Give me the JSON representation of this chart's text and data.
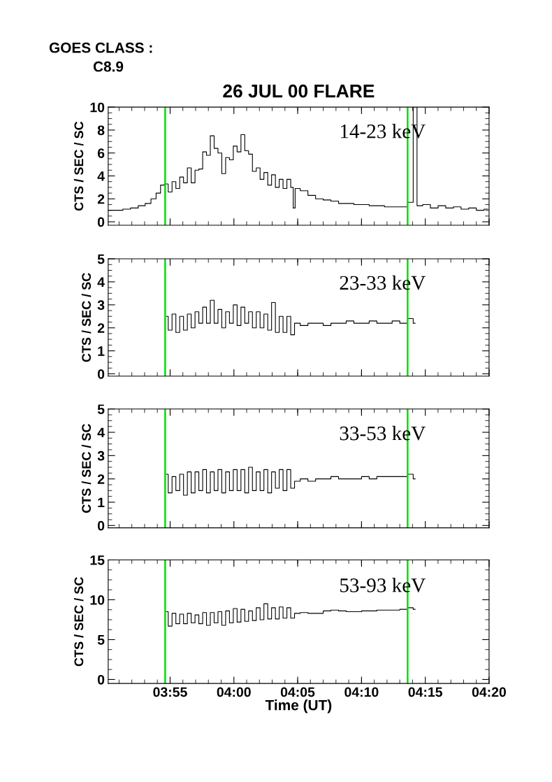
{
  "chart_data": [
    {
      "type": "step",
      "title": "26 JUL 00 FLARE",
      "ylabel": "CTS / SEC / SC",
      "annotations": [
        "GOES CLASS :",
        "C8.9",
        "14-23 keV"
      ],
      "tick_labels": "y",
      "grid": false,
      "legend": false,
      "xlim": [
        3.8358,
        4.3333
      ],
      "xticks": [
        {
          "value": 3.9167,
          "label": null
        },
        {
          "value": 4.0,
          "label": null
        },
        {
          "value": 4.0833,
          "label": null
        },
        {
          "value": 4.1667,
          "label": null
        },
        {
          "value": 4.25,
          "label": null
        },
        {
          "value": 4.3333,
          "label": null
        }
      ],
      "ylim": [
        -0.3,
        10
      ],
      "yticks": [
        0,
        2,
        4,
        6,
        8,
        10
      ],
      "ref_lines": [
        {
          "axis": "x",
          "value": 3.9102,
          "color": "#00e000"
        },
        {
          "axis": "x",
          "value": 4.2269,
          "color": "#00e000"
        }
      ],
      "series": [
        {
          "color": "#000000",
          "x": [
            3.8359,
            3.85,
            3.86,
            3.87,
            3.88,
            3.8883,
            3.895,
            3.9017,
            3.9067,
            3.9117,
            3.9167,
            3.9217,
            3.9267,
            3.9317,
            3.9367,
            3.9417,
            3.9467,
            3.9517,
            3.9567,
            3.9617,
            3.9667,
            3.9717,
            3.9767,
            3.9817,
            3.9867,
            3.9917,
            3.9967,
            4.0017,
            4.0067,
            4.0117,
            4.0167,
            4.0217,
            4.0267,
            4.0317,
            4.0367,
            4.0417,
            4.0467,
            4.0517,
            4.0567,
            4.0617,
            4.0667,
            4.0717,
            4.0767,
            4.0783,
            4.0817,
            4.0917,
            4.1017,
            4.1117,
            4.1217,
            4.1317,
            4.1417,
            4.1517,
            4.1617,
            4.1717,
            4.1817,
            4.1917,
            4.2017,
            4.2117,
            4.2217,
            4.2317,
            4.2367,
            4.2417,
            4.2517,
            4.2617,
            4.2717,
            4.2817,
            4.2917,
            4.3017,
            4.3117,
            4.3217,
            4.3317
          ],
          "values": [
            1.0,
            1.0,
            1.1,
            1.2,
            1.4,
            1.6,
            2.0,
            2.5,
            3.2,
            3.3,
            2.6,
            3.5,
            2.9,
            3.9,
            3.4,
            4.7,
            3.4,
            4.5,
            4.6,
            6.1,
            5.8,
            7.5,
            6.4,
            6.0,
            4.2,
            5.6,
            5.4,
            6.6,
            6.1,
            7.6,
            6.2,
            5.9,
            4.4,
            4.7,
            3.7,
            4.3,
            3.2,
            4.1,
            3.0,
            3.7,
            2.9,
            3.7,
            3.0,
            1.2,
            2.9,
            2.7,
            2.3,
            2.0,
            1.9,
            1.8,
            1.6,
            1.6,
            1.5,
            1.5,
            1.4,
            1.4,
            1.3,
            1.3,
            1.3,
            1.7,
            10,
            1.4,
            1.5,
            1.2,
            1.4,
            1.2,
            1.3,
            1.1,
            1.2,
            1.0,
            1.1
          ]
        }
      ]
    },
    {
      "type": "step",
      "ylabel": "CTS / SEC / SC",
      "annotations": [
        "23-33 keV"
      ],
      "tick_labels": "y",
      "grid": false,
      "legend": false,
      "xlim": [
        3.8358,
        4.3333
      ],
      "xticks": [
        {
          "value": 3.9167,
          "label": null
        },
        {
          "value": 4.0,
          "label": null
        },
        {
          "value": 4.0833,
          "label": null
        },
        {
          "value": 4.1667,
          "label": null
        },
        {
          "value": 4.25,
          "label": null
        },
        {
          "value": 4.3333,
          "label": null
        }
      ],
      "ylim": [
        -0.1,
        5
      ],
      "yticks": [
        0,
        1,
        2,
        3,
        4,
        5
      ],
      "ref_lines": [
        {
          "axis": "x",
          "value": 3.9102,
          "color": "#00e000"
        },
        {
          "axis": "x",
          "value": 4.2269,
          "color": "#00e000"
        }
      ],
      "series": [
        {
          "color": "#000000",
          "x": [
            3.9117,
            3.9167,
            3.9217,
            3.9267,
            3.9317,
            3.9367,
            3.9417,
            3.9467,
            3.9517,
            3.9567,
            3.9617,
            3.9667,
            3.9717,
            3.9767,
            3.9817,
            3.9867,
            3.9917,
            3.9967,
            4.0017,
            4.0067,
            4.0117,
            4.0167,
            4.0217,
            4.0267,
            4.0317,
            4.0367,
            4.0417,
            4.0467,
            4.0517,
            4.0567,
            4.0617,
            4.0667,
            4.0717,
            4.0767,
            4.0817,
            4.0917,
            4.1017,
            4.1117,
            4.1217,
            4.1317,
            4.1417,
            4.1517,
            4.1617,
            4.1717,
            4.1817,
            4.1917,
            4.2017,
            4.2117,
            4.2217,
            4.2317,
            4.2367
          ],
          "values": [
            2.5,
            1.9,
            2.6,
            1.8,
            2.5,
            1.9,
            2.6,
            2.0,
            2.7,
            2.2,
            2.9,
            2.2,
            3.2,
            2.2,
            2.8,
            2.0,
            2.7,
            2.2,
            3.0,
            2.1,
            2.9,
            2.2,
            2.7,
            2.0,
            2.7,
            2.0,
            2.6,
            1.9,
            3.1,
            1.8,
            2.5,
            1.8,
            2.5,
            1.7,
            2.2,
            2.1,
            2.2,
            2.2,
            2.1,
            2.2,
            2.2,
            2.3,
            2.2,
            2.2,
            2.3,
            2.2,
            2.2,
            2.3,
            2.2,
            2.4,
            2.2
          ]
        }
      ]
    },
    {
      "type": "step",
      "ylabel": "CTS / SEC / SC",
      "annotations": [
        "33-53 keV"
      ],
      "tick_labels": "y",
      "grid": false,
      "legend": false,
      "xlim": [
        3.8358,
        4.3333
      ],
      "xticks": [
        {
          "value": 3.9167,
          "label": null
        },
        {
          "value": 4.0,
          "label": null
        },
        {
          "value": 4.0833,
          "label": null
        },
        {
          "value": 4.1667,
          "label": null
        },
        {
          "value": 4.25,
          "label": null
        },
        {
          "value": 4.3333,
          "label": null
        }
      ],
      "ylim": [
        -0.1,
        5
      ],
      "yticks": [
        0,
        1,
        2,
        3,
        4,
        5
      ],
      "ref_lines": [
        {
          "axis": "x",
          "value": 3.9102,
          "color": "#00e000"
        },
        {
          "axis": "x",
          "value": 4.2269,
          "color": "#00e000"
        }
      ],
      "series": [
        {
          "color": "#000000",
          "x": [
            3.9117,
            3.9167,
            3.9217,
            3.9267,
            3.9317,
            3.9367,
            3.9417,
            3.9467,
            3.9517,
            3.9567,
            3.9617,
            3.9667,
            3.9717,
            3.9767,
            3.9817,
            3.9867,
            3.9917,
            3.9967,
            4.0017,
            4.0067,
            4.0117,
            4.0167,
            4.0217,
            4.0267,
            4.0317,
            4.0367,
            4.0417,
            4.0467,
            4.0517,
            4.0567,
            4.0617,
            4.0667,
            4.0717,
            4.0767,
            4.0817,
            4.0917,
            4.1017,
            4.1117,
            4.1217,
            4.1317,
            4.1417,
            4.1517,
            4.1617,
            4.1717,
            4.1817,
            4.1917,
            4.2017,
            4.2117,
            4.2217,
            4.2317,
            4.2367
          ],
          "values": [
            2.2,
            1.4,
            2.1,
            1.5,
            2.2,
            1.3,
            2.3,
            1.4,
            2.3,
            1.5,
            2.4,
            1.4,
            2.3,
            1.5,
            2.4,
            1.4,
            2.3,
            1.5,
            2.4,
            1.5,
            2.4,
            1.4,
            2.5,
            1.5,
            2.3,
            1.5,
            2.4,
            1.4,
            2.3,
            1.6,
            2.4,
            1.5,
            2.4,
            1.6,
            1.9,
            2.0,
            1.9,
            2.0,
            2.0,
            2.1,
            2.0,
            2.0,
            2.0,
            2.1,
            2.0,
            2.1,
            2.1,
            2.1,
            2.1,
            2.2,
            2.0
          ]
        }
      ]
    },
    {
      "type": "step",
      "ylabel": "CTS / SEC / SC",
      "xlabel": "Time (UT)",
      "annotations": [
        "53-93 keV"
      ],
      "grid": false,
      "legend": false,
      "xlim": [
        3.8358,
        4.3333
      ],
      "xticks": [
        {
          "value": 3.9167,
          "label": "03:55"
        },
        {
          "value": 4.0,
          "label": "04:00"
        },
        {
          "value": 4.0833,
          "label": "04:05"
        },
        {
          "value": 4.1667,
          "label": "04:10"
        },
        {
          "value": 4.25,
          "label": "04:15"
        },
        {
          "value": 4.3333,
          "label": "04:20"
        }
      ],
      "ylim": [
        -0.5,
        15
      ],
      "yticks": [
        0,
        5,
        10,
        15
      ],
      "ref_lines": [
        {
          "axis": "x",
          "value": 3.9102,
          "color": "#00e000"
        },
        {
          "axis": "x",
          "value": 4.2269,
          "color": "#00e000"
        }
      ],
      "series": [
        {
          "color": "#000000",
          "x": [
            3.9117,
            3.9167,
            3.9217,
            3.9267,
            3.9317,
            3.9367,
            3.9417,
            3.9467,
            3.9517,
            3.9567,
            3.9617,
            3.9667,
            3.9717,
            3.9767,
            3.9817,
            3.9867,
            3.9917,
            3.9967,
            4.0017,
            4.0067,
            4.0117,
            4.0167,
            4.0217,
            4.0267,
            4.0317,
            4.0367,
            4.0417,
            4.0467,
            4.0517,
            4.0567,
            4.0617,
            4.0667,
            4.0717,
            4.0767,
            4.0817,
            4.0917,
            4.1017,
            4.1117,
            4.1217,
            4.1317,
            4.1417,
            4.1517,
            4.1617,
            4.1717,
            4.1817,
            4.1917,
            4.2017,
            4.2117,
            4.2217,
            4.2317,
            4.2367
          ],
          "values": [
            8.5,
            6.7,
            8.3,
            7.0,
            8.2,
            7.0,
            8.3,
            7.1,
            8.1,
            7.0,
            8.4,
            6.8,
            8.4,
            7.1,
            8.5,
            6.8,
            8.6,
            7.1,
            8.9,
            7.2,
            8.8,
            7.3,
            8.6,
            7.4,
            9.0,
            7.5,
            9.5,
            7.6,
            9.0,
            7.6,
            9.1,
            7.7,
            9.0,
            7.7,
            8.3,
            8.4,
            8.3,
            8.3,
            8.6,
            8.7,
            8.6,
            8.5,
            8.5,
            8.6,
            8.6,
            8.7,
            8.7,
            8.7,
            8.8,
            9.0,
            8.8
          ]
        }
      ]
    }
  ]
}
